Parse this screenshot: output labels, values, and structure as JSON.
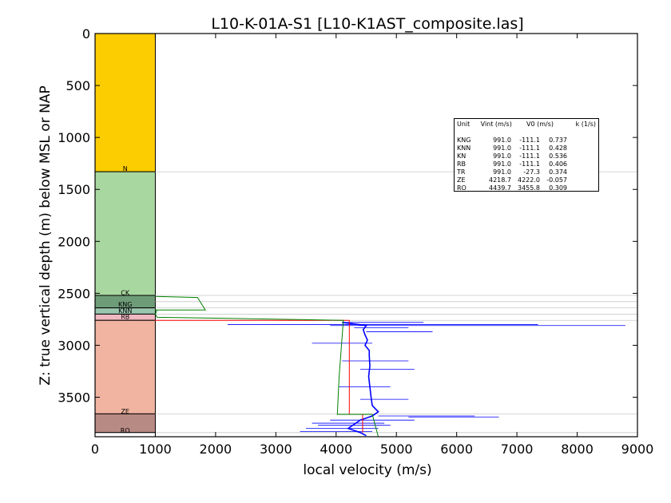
{
  "chart_data": {
    "type": "line",
    "title": "L10-K-01A-S1 [L10-K1AST_composite.las]",
    "xlabel": "local velocity (m/s)",
    "ylabel": "Z: true vertical depth (m) below MSL or NAP",
    "xlim": [
      0,
      9000
    ],
    "ylim": [
      3880,
      0
    ],
    "xticks": [
      0,
      1000,
      2000,
      3000,
      4000,
      5000,
      6000,
      7000,
      8000,
      9000
    ],
    "yticks": [
      0,
      500,
      1000,
      1500,
      2000,
      2500,
      3000,
      3500
    ],
    "grid": false,
    "formations": [
      {
        "name": "N",
        "top": 0,
        "base": 1330,
        "color": "#FCCD00"
      },
      {
        "name": "CK",
        "top": 1330,
        "base": 2520,
        "color": "#A8D8A0"
      },
      {
        "name": "KNG",
        "top": 2520,
        "base": 2640,
        "color": "#6E9C78"
      },
      {
        "name": "KNN",
        "top": 2640,
        "base": 2700,
        "color": "#9AC6AE"
      },
      {
        "name": "RB",
        "top": 2700,
        "base": 2760,
        "color": "#F0B8C0"
      },
      {
        "name": "TR",
        "top": 2760,
        "base": 3660,
        "color": "#F0B4A0"
      },
      {
        "name": "ZE",
        "top": 3660,
        "base": 3840,
        "color": "#B88A84"
      },
      {
        "name": "RO",
        "top": 3840,
        "base": 3880,
        "color": "#FFFFFF"
      }
    ],
    "formation_labels": [
      {
        "text": "N",
        "depth": 1300
      },
      {
        "text": "CK",
        "depth": 2495
      },
      {
        "text": "KNG",
        "depth": 2605
      },
      {
        "text": "KNN",
        "depth": 2665
      },
      {
        "text": "RB",
        "depth": 2725
      },
      {
        "text": "ZE",
        "depth": 3635
      },
      {
        "text": "RO",
        "depth": 3820
      }
    ],
    "horizon_lines": [
      1330,
      2520,
      2580,
      2640,
      2700,
      2760,
      3660,
      3840
    ],
    "interval_velocity_line": {
      "color": "#FF0000",
      "points": [
        [
          991,
          2760
        ],
        [
          4219,
          2760
        ],
        [
          4219,
          3665
        ],
        [
          4440,
          3665
        ],
        [
          4440,
          3840
        ]
      ]
    },
    "v0k_model_line": {
      "color": "#008000",
      "points": [
        [
          1000,
          2530
        ],
        [
          1700,
          2540
        ],
        [
          1830,
          2660
        ],
        [
          1000,
          2660
        ],
        [
          1030,
          2660
        ],
        [
          1000,
          2700
        ],
        [
          1030,
          2730
        ],
        [
          4120,
          2760
        ],
        [
          4050,
          3300
        ],
        [
          4020,
          3665
        ],
        [
          4600,
          3665
        ],
        [
          4700,
          3880
        ]
      ]
    },
    "velocity_log": {
      "color": "#0000FF",
      "series": "sonic-derived local velocity",
      "baseline": [
        [
          4100,
          2780
        ],
        [
          4500,
          2810
        ],
        [
          4450,
          2850
        ],
        [
          4480,
          2900
        ],
        [
          4520,
          2950
        ],
        [
          4480,
          3000
        ],
        [
          4550,
          3050
        ],
        [
          4550,
          3100
        ],
        [
          4560,
          3200
        ],
        [
          4540,
          3300
        ],
        [
          4560,
          3400
        ],
        [
          4580,
          3500
        ],
        [
          4600,
          3580
        ],
        [
          4700,
          3640
        ],
        [
          4600,
          3680
        ],
        [
          4400,
          3720
        ],
        [
          4300,
          3760
        ],
        [
          4200,
          3800
        ],
        [
          4400,
          3840
        ],
        [
          4500,
          3870
        ]
      ],
      "spikes": [
        {
          "depth": 2780,
          "x0": 4100,
          "x1": 5450
        },
        {
          "depth": 2800,
          "x0": 2200,
          "x1": 7350
        },
        {
          "depth": 2810,
          "x0": 3900,
          "x1": 8800
        },
        {
          "depth": 2830,
          "x0": 4300,
          "x1": 5200
        },
        {
          "depth": 2870,
          "x0": 4500,
          "x1": 5600
        },
        {
          "depth": 2980,
          "x0": 3600,
          "x1": 4600
        },
        {
          "depth": 3150,
          "x0": 4100,
          "x1": 5200
        },
        {
          "depth": 3230,
          "x0": 4400,
          "x1": 5300
        },
        {
          "depth": 3400,
          "x0": 4050,
          "x1": 4900
        },
        {
          "depth": 3520,
          "x0": 4400,
          "x1": 5200
        },
        {
          "depth": 3680,
          "x0": 4700,
          "x1": 6300
        },
        {
          "depth": 3690,
          "x0": 5200,
          "x1": 6700
        },
        {
          "depth": 3720,
          "x0": 3900,
          "x1": 5300
        },
        {
          "depth": 3750,
          "x0": 3600,
          "x1": 4800
        },
        {
          "depth": 3770,
          "x0": 3700,
          "x1": 4900
        },
        {
          "depth": 3800,
          "x0": 3500,
          "x1": 4700
        },
        {
          "depth": 3830,
          "x0": 3400,
          "x1": 4600
        }
      ]
    },
    "legend": {
      "placement": "upper-right",
      "headers": {
        "unit": "Unit",
        "vint": "Vint (m/s)",
        "v0": "V0 (m/s)",
        "k": "k (1/s)"
      },
      "rows": [
        {
          "unit": "KNG",
          "vint": "991.0",
          "v0": "-111.1",
          "k": "0.737"
        },
        {
          "unit": "KNN",
          "vint": "991.0",
          "v0": "-111.1",
          "k": "0.428"
        },
        {
          "unit": "KN",
          "vint": "991.0",
          "v0": "-111.1",
          "k": "0.536"
        },
        {
          "unit": "RB",
          "vint": "991.0",
          "v0": "-111.1",
          "k": "0.406"
        },
        {
          "unit": "TR",
          "vint": "991.0",
          "v0": "-27.3",
          "k": "0.374"
        },
        {
          "unit": "ZE",
          "vint": "4218.7",
          "v0": "4222.0",
          "k": "-0.057"
        },
        {
          "unit": "RO",
          "vint": "4439.7",
          "v0": "3455.8",
          "k": "0.309"
        }
      ]
    }
  }
}
